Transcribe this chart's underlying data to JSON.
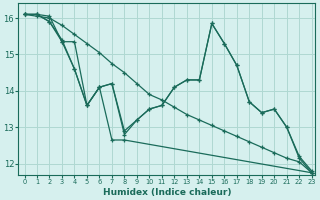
{
  "background_color": "#d6f0ee",
  "grid_color": "#afd8d2",
  "line_color": "#1a6b5a",
  "xlabel": "Humidex (Indice chaleur)",
  "ylim": [
    11.7,
    16.4
  ],
  "xlim": [
    -0.5,
    23.3
  ],
  "yticks": [
    12,
    13,
    14,
    15,
    16
  ],
  "xticks": [
    0,
    1,
    2,
    3,
    4,
    5,
    6,
    7,
    8,
    9,
    10,
    11,
    12,
    13,
    14,
    15,
    16,
    17,
    18,
    19,
    20,
    21,
    22,
    23
  ],
  "series": [
    {
      "x": [
        0,
        1,
        2,
        3,
        4,
        5,
        6,
        7,
        8,
        9,
        10,
        11,
        12,
        13,
        14,
        15,
        16,
        17,
        18,
        19,
        20,
        21,
        22,
        23
      ],
      "y": [
        16.1,
        16.1,
        15.9,
        15.4,
        14.6,
        13.6,
        14.1,
        14.2,
        12.9,
        13.2,
        13.5,
        13.6,
        14.1,
        14.3,
        14.3,
        15.85,
        15.3,
        14.7,
        13.7,
        13.4,
        13.5,
        13.0,
        12.2,
        11.8
      ]
    },
    {
      "x": [
        0,
        1,
        2,
        3,
        4,
        5,
        6,
        7,
        8,
        9,
        10,
        11,
        12,
        13,
        14,
        15,
        16,
        17,
        18,
        19,
        20,
        21,
        22,
        23
      ],
      "y": [
        16.1,
        16.1,
        16.05,
        15.35,
        15.35,
        13.6,
        14.1,
        14.2,
        12.8,
        13.2,
        13.5,
        13.6,
        14.1,
        14.3,
        14.3,
        15.85,
        15.3,
        14.7,
        13.7,
        13.4,
        13.5,
        13.0,
        12.15,
        11.75
      ]
    },
    {
      "x": [
        0,
        1,
        2,
        3,
        4,
        5,
        6,
        7,
        8,
        23
      ],
      "y": [
        16.1,
        16.1,
        15.9,
        15.35,
        14.6,
        13.6,
        14.1,
        12.65,
        12.65,
        11.75
      ]
    },
    {
      "x": [
        0,
        1,
        2,
        3,
        4,
        5,
        6,
        7,
        8,
        9,
        10,
        11,
        12,
        13,
        14,
        15,
        16,
        17,
        18,
        19,
        20,
        21,
        22,
        23
      ],
      "y": [
        16.1,
        16.05,
        16.0,
        15.8,
        15.55,
        15.3,
        15.05,
        14.75,
        14.5,
        14.2,
        13.9,
        13.75,
        13.55,
        13.35,
        13.2,
        13.05,
        12.9,
        12.75,
        12.6,
        12.45,
        12.3,
        12.15,
        12.05,
        11.75
      ]
    }
  ]
}
